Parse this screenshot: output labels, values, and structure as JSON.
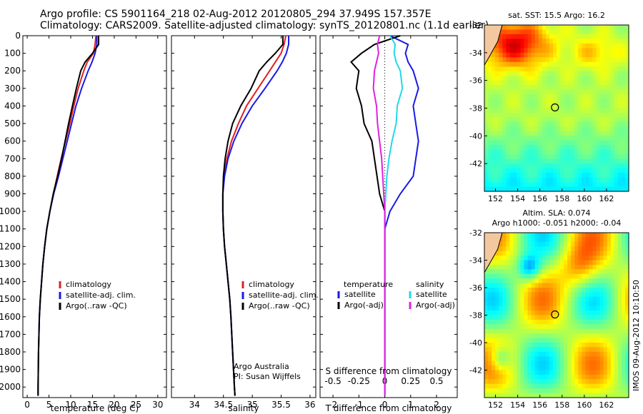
{
  "header": {
    "line1": "Argo profile: CS 5901164_218 02-Aug-2012 20120805_294 37.949S 157.357E",
    "line2": "Climatology: CARS2009. Satellite-adjusted climatology: synTS_20120801.nc (1.1d earlier)"
  },
  "colors": {
    "climatology": "#e02020",
    "satellite": "#1a1ae6",
    "argo": "#000000",
    "sat_salinity": "#22d8e8",
    "argo_salinity": "#e020e0"
  },
  "side_text": "IMOS 09-Aug-2012 10:10:50",
  "chart_data": [
    {
      "type": "line",
      "xlabel": "temperature (deg C)",
      "ylabel": "",
      "xlim": [
        -1,
        32
      ],
      "ylim": [
        2060,
        0
      ],
      "xticks": [
        "0",
        "5",
        "10",
        "15",
        "20",
        "25",
        "30"
      ],
      "yticks": [
        "0",
        "100",
        "200",
        "300",
        "400",
        "500",
        "600",
        "700",
        "800",
        "900",
        "1000",
        "1100",
        "1200",
        "1300",
        "1400",
        "1500",
        "1600",
        "1700",
        "1800",
        "1900",
        "2000"
      ],
      "legend": [
        "climatology",
        "satellite-adj. clim.",
        "Argo(..raw -QC)"
      ],
      "series": [
        {
          "name": "climatology",
          "depth": [
            0,
            50,
            100,
            150,
            200,
            300,
            400,
            500,
            600,
            700,
            800,
            900,
            1000,
            1100,
            1200,
            1300,
            1400,
            1500,
            1600,
            1800,
            2000,
            2050
          ],
          "values": [
            15.8,
            15.6,
            15.2,
            13.8,
            13.0,
            11.7,
            10.7,
            9.8,
            8.8,
            7.8,
            6.9,
            6.0,
            5.2,
            4.5,
            4.0,
            3.6,
            3.3,
            3.0,
            2.8,
            2.6,
            2.5,
            2.5
          ]
        },
        {
          "name": "satellite-adj. clim.",
          "depth": [
            0,
            50,
            100,
            150,
            200,
            300,
            400,
            500,
            600,
            700,
            800,
            900,
            1000,
            1100,
            1200,
            1300,
            1400,
            1500,
            1600,
            1800,
            2000,
            2050
          ],
          "values": [
            16.0,
            16.0,
            15.6,
            14.9,
            14.0,
            12.5,
            11.2,
            10.2,
            9.2,
            8.2,
            7.2,
            6.1,
            5.2,
            4.5,
            4.0,
            3.6,
            3.3,
            3.0,
            2.8,
            2.6,
            2.5,
            2.5
          ]
        },
        {
          "name": "Argo(..raw -QC)",
          "depth": [
            0,
            50,
            100,
            150,
            200,
            300,
            400,
            500,
            600,
            700,
            800,
            900,
            1000,
            1100,
            1200,
            1300,
            1400,
            1500,
            1600,
            1800,
            2000,
            2050
          ],
          "values": [
            16.4,
            16.4,
            15.0,
            13.3,
            12.3,
            11.3,
            10.4,
            9.5,
            8.7,
            7.9,
            7.0,
            6.0,
            5.2,
            4.5,
            4.0,
            3.6,
            3.3,
            3.0,
            2.8,
            2.6,
            2.5,
            2.5
          ]
        }
      ]
    },
    {
      "type": "line",
      "xlabel": "salinity",
      "xlim": [
        33.6,
        36.1
      ],
      "ylim": [
        2060,
        0
      ],
      "xticks": [
        "34",
        "34.5",
        "35",
        "35.5",
        "36"
      ],
      "legend": [
        "climatology",
        "satellite-adj. clim.",
        "Argo(..raw -QC)"
      ],
      "annotation": [
        "Argo Australia",
        "PI: Susan Wijffels"
      ],
      "series": [
        {
          "name": "climatology",
          "depth": [
            0,
            50,
            100,
            150,
            200,
            300,
            400,
            500,
            600,
            700,
            800,
            900,
            1000,
            1100,
            1200,
            1300,
            1400,
            1500,
            1600,
            1800,
            2000,
            2050
          ],
          "values": [
            35.58,
            35.55,
            35.5,
            35.4,
            35.3,
            35.1,
            34.9,
            34.76,
            34.64,
            34.56,
            34.51,
            34.49,
            34.49,
            34.5,
            34.52,
            34.55,
            34.58,
            34.61,
            34.63,
            34.66,
            34.69,
            34.7
          ]
        },
        {
          "name": "satellite-adj. clim.",
          "depth": [
            0,
            50,
            100,
            150,
            200,
            300,
            400,
            500,
            600,
            700,
            800,
            900,
            1000,
            1100,
            1200,
            1300,
            1400,
            1500,
            1600,
            1800,
            2000,
            2050
          ],
          "values": [
            35.63,
            35.63,
            35.59,
            35.52,
            35.43,
            35.22,
            35.0,
            34.82,
            34.68,
            34.58,
            34.52,
            34.49,
            34.49,
            34.5,
            34.52,
            34.55,
            34.58,
            34.61,
            34.63,
            34.66,
            34.69,
            34.7
          ]
        },
        {
          "name": "Argo(..raw -QC)",
          "depth": [
            0,
            50,
            100,
            150,
            200,
            300,
            400,
            500,
            600,
            700,
            800,
            900,
            1000,
            1100,
            1200,
            1300,
            1400,
            1500,
            1600,
            1800,
            2000,
            2050
          ],
          "values": [
            35.53,
            35.53,
            35.4,
            35.25,
            35.12,
            34.98,
            34.8,
            34.66,
            34.58,
            34.53,
            34.5,
            34.49,
            34.49,
            34.5,
            34.52,
            34.55,
            34.58,
            34.61,
            34.63,
            34.66,
            34.69,
            34.7
          ]
        }
      ]
    },
    {
      "type": "line",
      "xlabel_top": "S difference from climatology",
      "xlabel": "T difference from climatology",
      "xlim": [
        -2.5,
        2.8
      ],
      "ylim": [
        2060,
        0
      ],
      "xticks": [
        "-2",
        "-1",
        "0",
        "1",
        "2"
      ],
      "xticks_top": [
        "-0.5",
        "-0.25",
        "0",
        "0.25",
        "0.5"
      ],
      "legend_titles": [
        "temperature",
        "salinity"
      ],
      "legend": [
        "satellite",
        "Argo(-adj)",
        "satellite",
        "Argo(-adj)"
      ],
      "series": [
        {
          "name": "satellite",
          "depth": [
            0,
            50,
            100,
            150,
            200,
            300,
            400,
            500,
            600,
            700,
            800,
            900,
            1000,
            1100,
            1200,
            1400,
            1600,
            1800,
            2000,
            2050
          ],
          "values": [
            0.2,
            0.9,
            0.8,
            0.9,
            1.1,
            1.3,
            1.1,
            1.2,
            1.3,
            1.2,
            1.1,
            0.6,
            0.2,
            0.0,
            0.0,
            0.0,
            0.0,
            0.0,
            0.0,
            0.0
          ]
        },
        {
          "name": "Argo(-adj)",
          "depth": [
            0,
            50,
            100,
            150,
            200,
            300,
            400,
            500,
            600,
            700,
            800,
            900,
            1000,
            1100,
            1200,
            1400,
            1600,
            1800,
            2000,
            2050
          ],
          "values": [
            0.6,
            -0.4,
            -0.9,
            -1.3,
            -1.0,
            -1.1,
            -0.9,
            -0.8,
            -0.5,
            -0.4,
            -0.3,
            -0.2,
            0.0,
            0.0,
            0.0,
            0.0,
            0.0,
            0.0,
            0.0,
            0.0
          ]
        },
        {
          "name": "satellite",
          "depth": [
            0,
            50,
            100,
            150,
            200,
            300,
            400,
            500,
            600,
            700,
            800,
            900,
            1000,
            1100,
            1200,
            1400,
            1600,
            1800,
            2000,
            2050
          ],
          "values": [
            0.05,
            0.1,
            0.09,
            0.11,
            0.15,
            0.17,
            0.12,
            0.11,
            0.07,
            0.04,
            0.02,
            0.01,
            0.0,
            0.0,
            0.0,
            0.0,
            0.0,
            0.0,
            0.0,
            0.0
          ]
        },
        {
          "name": "Argo(-adj)",
          "depth": [
            0,
            50,
            100,
            150,
            200,
            300,
            400,
            500,
            600,
            700,
            800,
            900,
            1000,
            1100,
            1200,
            1400,
            1600,
            1800,
            2000,
            2050
          ],
          "values": [
            -0.05,
            -0.07,
            -0.06,
            -0.08,
            -0.1,
            -0.11,
            -0.08,
            -0.07,
            -0.05,
            -0.03,
            -0.02,
            -0.01,
            0.0,
            0.0,
            0.0,
            0.0,
            0.0,
            0.0,
            0.0,
            0.0
          ]
        }
      ]
    },
    {
      "type": "heatmap",
      "title": "sat. SST: 15.5 Argo: 16.2",
      "xlim": [
        151,
        164
      ],
      "ylim": [
        -44,
        -32
      ],
      "xticks": [
        "152",
        "154",
        "156",
        "158",
        "160",
        "162"
      ],
      "yticks": [
        "-32",
        "-34",
        "-36",
        "-38",
        "-40",
        "-42"
      ],
      "marker": {
        "lon": 157.357,
        "lat": -37.949
      }
    },
    {
      "type": "heatmap",
      "title": [
        "Altim. SLA: 0.074",
        "Argo h1000: -0.051 h2000: -0.04"
      ],
      "xlim": [
        151,
        164
      ],
      "ylim": [
        -44,
        -32
      ],
      "xticks": [
        "152",
        "154",
        "156",
        "158",
        "160",
        "162"
      ],
      "yticks": [
        "-32",
        "-34",
        "-36",
        "-38",
        "-40",
        "-42"
      ],
      "marker": {
        "lon": 157.357,
        "lat": -37.949
      }
    }
  ]
}
